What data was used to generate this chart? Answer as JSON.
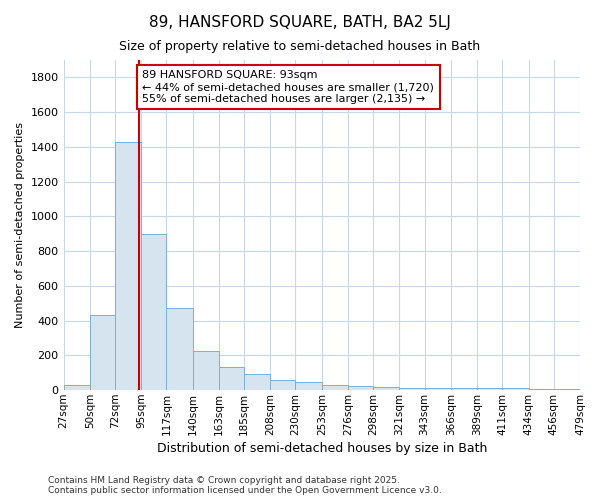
{
  "title": "89, HANSFORD SQUARE, BATH, BA2 5LJ",
  "subtitle": "Size of property relative to semi-detached houses in Bath",
  "xlabel": "Distribution of semi-detached houses by size in Bath",
  "ylabel": "Number of semi-detached properties",
  "bin_labels": [
    "27sqm",
    "50sqm",
    "72sqm",
    "95sqm",
    "117sqm",
    "140sqm",
    "163sqm",
    "185sqm",
    "208sqm",
    "230sqm",
    "253sqm",
    "276sqm",
    "298sqm",
    "321sqm",
    "343sqm",
    "366sqm",
    "389sqm",
    "411sqm",
    "434sqm",
    "456sqm",
    "479sqm"
  ],
  "bin_edges": [
    27,
    50,
    72,
    95,
    117,
    140,
    163,
    185,
    208,
    230,
    253,
    276,
    298,
    321,
    343,
    366,
    389,
    411,
    434,
    456,
    479
  ],
  "bar_heights": [
    30,
    430,
    1430,
    900,
    470,
    225,
    135,
    95,
    60,
    45,
    30,
    25,
    20,
    15,
    12,
    10,
    12,
    12,
    5,
    5
  ],
  "bar_color": "#d6e4f0",
  "bar_edge_color": "#7aafd4",
  "property_size": 93,
  "red_line_color": "#cc0000",
  "annotation_line1": "89 HANSFORD SQUARE: 93sqm",
  "annotation_line2": "← 44% of semi-detached houses are smaller (1,720)",
  "annotation_line3": "55% of semi-detached houses are larger (2,135) →",
  "annotation_box_color": "#ffffff",
  "annotation_edge_color": "#cc0000",
  "ylim": [
    0,
    1900
  ],
  "yticks": [
    0,
    200,
    400,
    600,
    800,
    1000,
    1200,
    1400,
    1600,
    1800
  ],
  "background_color": "#ffffff",
  "grid_color": "#c8d8e8",
  "footer_line1": "Contains HM Land Registry data © Crown copyright and database right 2025.",
  "footer_line2": "Contains public sector information licensed under the Open Government Licence v3.0."
}
